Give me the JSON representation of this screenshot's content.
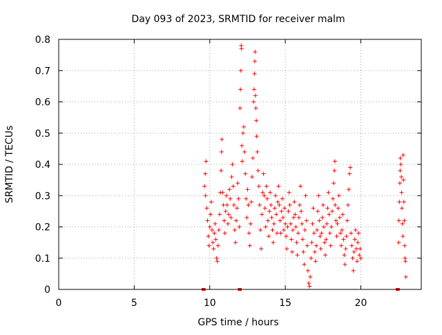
{
  "chart_data": {
    "type": "scatter",
    "title": "Day 093 of 2023, SRMTID for receiver malm",
    "xlabel": "GPS time / hours",
    "ylabel": "SRMTID / TECUs",
    "xlim": [
      0,
      24
    ],
    "ylim": [
      0,
      0.8
    ],
    "xticks": [
      "0",
      "5",
      "10",
      "15",
      "20"
    ],
    "xtick_values": [
      0,
      5,
      10,
      15,
      20
    ],
    "yticks": [
      "0",
      "0.1",
      "0.2",
      "0.3",
      "0.4",
      "0.5",
      "0.6",
      "0.7",
      "0.8"
    ],
    "ytick_values": [
      0,
      0.1,
      0.2,
      0.3,
      0.4,
      0.5,
      0.6,
      0.7,
      0.8
    ],
    "grid": true,
    "marker": "+",
    "series_color": "#ff0000",
    "series": [
      {
        "name": "SRMTID",
        "points": [
          [
            9.65,
            0.33
          ],
          [
            9.7,
            0.37
          ],
          [
            9.75,
            0.41
          ],
          [
            9.72,
            0.3
          ],
          [
            9.8,
            0.26
          ],
          [
            9.85,
            0.22
          ],
          [
            9.9,
            0.17
          ],
          [
            9.95,
            0.14
          ],
          [
            10.0,
            0.2
          ],
          [
            10.05,
            0.24
          ],
          [
            10.1,
            0.28
          ],
          [
            10.15,
            0.19
          ],
          [
            10.2,
            0.15
          ],
          [
            10.25,
            0.13
          ],
          [
            10.3,
            0.18
          ],
          [
            10.35,
            0.21
          ],
          [
            10.4,
            0.16
          ],
          [
            10.45,
            0.1
          ],
          [
            10.5,
            0.09
          ],
          [
            10.55,
            0.14
          ],
          [
            10.6,
            0.19
          ],
          [
            10.65,
            0.24
          ],
          [
            10.7,
            0.31
          ],
          [
            10.75,
            0.38
          ],
          [
            10.78,
            0.44
          ],
          [
            10.8,
            0.48
          ],
          [
            10.85,
            0.31
          ],
          [
            10.9,
            0.27
          ],
          [
            10.95,
            0.22
          ],
          [
            11.0,
            0.18
          ],
          [
            11.05,
            0.25
          ],
          [
            11.1,
            0.3
          ],
          [
            11.15,
            0.27
          ],
          [
            11.2,
            0.21
          ],
          [
            11.25,
            0.24
          ],
          [
            11.3,
            0.32
          ],
          [
            11.35,
            0.29
          ],
          [
            11.4,
            0.23
          ],
          [
            11.45,
            0.36
          ],
          [
            11.5,
            0.4
          ],
          [
            11.55,
            0.33
          ],
          [
            11.6,
            0.27
          ],
          [
            11.65,
            0.19
          ],
          [
            11.7,
            0.15
          ],
          [
            11.75,
            0.22
          ],
          [
            11.8,
            0.26
          ],
          [
            11.85,
            0.34
          ],
          [
            11.9,
            0.29
          ],
          [
            11.95,
            0.2
          ],
          [
            12.0,
            0.58
          ],
          [
            12.03,
            0.64
          ],
          [
            12.06,
            0.7
          ],
          [
            12.08,
            0.78
          ],
          [
            12.1,
            0.77
          ],
          [
            12.12,
            0.46
          ],
          [
            12.15,
            0.41
          ],
          [
            12.2,
            0.5
          ],
          [
            12.25,
            0.52
          ],
          [
            12.3,
            0.44
          ],
          [
            12.35,
            0.37
          ],
          [
            12.4,
            0.29
          ],
          [
            12.45,
            0.23
          ],
          [
            12.5,
            0.32
          ],
          [
            12.55,
            0.27
          ],
          [
            12.6,
            0.18
          ],
          [
            12.65,
            0.14
          ],
          [
            12.7,
            0.21
          ],
          [
            12.75,
            0.28
          ],
          [
            12.8,
            0.36
          ],
          [
            12.85,
            0.42
          ],
          [
            12.9,
            0.6
          ],
          [
            12.93,
            0.64
          ],
          [
            12.96,
            0.69
          ],
          [
            12.98,
            0.73
          ],
          [
            13.0,
            0.76
          ],
          [
            13.02,
            0.62
          ],
          [
            13.05,
            0.58
          ],
          [
            13.08,
            0.54
          ],
          [
            13.1,
            0.49
          ],
          [
            13.15,
            0.44
          ],
          [
            13.2,
            0.38
          ],
          [
            13.25,
            0.33
          ],
          [
            13.3,
            0.27
          ],
          [
            13.35,
            0.19
          ],
          [
            13.4,
            0.13
          ],
          [
            13.45,
            0.24
          ],
          [
            13.5,
            0.31
          ],
          [
            13.55,
            0.37
          ],
          [
            13.6,
            0.3
          ],
          [
            13.65,
            0.26
          ],
          [
            13.7,
            0.2
          ],
          [
            13.75,
            0.33
          ],
          [
            13.8,
            0.29
          ],
          [
            13.85,
            0.22
          ],
          [
            13.9,
            0.17
          ],
          [
            13.95,
            0.25
          ],
          [
            14.0,
            0.31
          ],
          [
            14.05,
            0.27
          ],
          [
            14.1,
            0.23
          ],
          [
            14.15,
            0.19
          ],
          [
            14.2,
            0.15
          ],
          [
            14.25,
            0.21
          ],
          [
            14.3,
            0.26
          ],
          [
            14.35,
            0.3
          ],
          [
            14.4,
            0.24
          ],
          [
            14.45,
            0.18
          ],
          [
            14.5,
            0.28
          ],
          [
            14.55,
            0.33
          ],
          [
            14.6,
            0.27
          ],
          [
            14.65,
            0.22
          ],
          [
            14.7,
            0.18
          ],
          [
            14.75,
            0.25
          ],
          [
            14.8,
            0.29
          ],
          [
            14.85,
            0.23
          ],
          [
            14.9,
            0.19
          ],
          [
            14.95,
            0.26
          ],
          [
            15.0,
            0.21
          ],
          [
            15.05,
            0.17
          ],
          [
            15.1,
            0.13
          ],
          [
            15.15,
            0.2
          ],
          [
            15.2,
            0.25
          ],
          [
            15.25,
            0.31
          ],
          [
            15.3,
            0.27
          ],
          [
            15.35,
            0.21
          ],
          [
            15.4,
            0.16
          ],
          [
            15.45,
            0.12
          ],
          [
            15.5,
            0.19
          ],
          [
            15.55,
            0.23
          ],
          [
            15.6,
            0.28
          ],
          [
            15.65,
            0.24
          ],
          [
            15.7,
            0.2
          ],
          [
            15.75,
            0.15
          ],
          [
            15.8,
            0.11
          ],
          [
            15.85,
            0.18
          ],
          [
            15.9,
            0.23
          ],
          [
            15.95,
            0.27
          ],
          [
            16.0,
            0.33
          ],
          [
            16.05,
            0.25
          ],
          [
            16.1,
            0.21
          ],
          [
            16.15,
            0.16
          ],
          [
            16.2,
            0.12
          ],
          [
            16.25,
            0.08
          ],
          [
            16.3,
            0.19
          ],
          [
            16.35,
            0.3
          ],
          [
            16.4,
            0.22
          ],
          [
            16.45,
            0.14
          ],
          [
            16.5,
            0.06
          ],
          [
            16.55,
            0.02
          ],
          [
            16.6,
            0.01
          ],
          [
            16.65,
            0.04
          ],
          [
            16.7,
            0.1
          ],
          [
            16.75,
            0.15
          ],
          [
            16.8,
            0.21
          ],
          [
            16.85,
            0.26
          ],
          [
            16.9,
            0.18
          ],
          [
            16.95,
            0.12
          ],
          [
            17.0,
            0.09
          ],
          [
            17.05,
            0.14
          ],
          [
            17.1,
            0.19
          ],
          [
            17.15,
            0.25
          ],
          [
            17.2,
            0.3
          ],
          [
            17.25,
            0.22
          ],
          [
            17.3,
            0.17
          ],
          [
            17.35,
            0.13
          ],
          [
            17.4,
            0.18
          ],
          [
            17.45,
            0.23
          ],
          [
            17.5,
            0.27
          ],
          [
            17.55,
            0.2
          ],
          [
            17.6,
            0.15
          ],
          [
            17.65,
            0.11
          ],
          [
            17.7,
            0.16
          ],
          [
            17.75,
            0.21
          ],
          [
            17.8,
            0.26
          ],
          [
            17.85,
            0.31
          ],
          [
            17.9,
            0.24
          ],
          [
            17.95,
            0.18
          ],
          [
            18.0,
            0.14
          ],
          [
            18.05,
            0.2
          ],
          [
            18.1,
            0.25
          ],
          [
            18.15,
            0.29
          ],
          [
            18.2,
            0.34
          ],
          [
            18.25,
            0.38
          ],
          [
            18.28,
            0.41
          ],
          [
            18.3,
            0.27
          ],
          [
            18.35,
            0.22
          ],
          [
            18.4,
            0.17
          ],
          [
            18.45,
            0.21
          ],
          [
            18.5,
            0.26
          ],
          [
            18.55,
            0.3
          ],
          [
            18.6,
            0.23
          ],
          [
            18.65,
            0.18
          ],
          [
            18.7,
            0.14
          ],
          [
            18.75,
            0.19
          ],
          [
            18.8,
            0.24
          ],
          [
            18.85,
            0.16
          ],
          [
            18.9,
            0.11
          ],
          [
            18.95,
            0.08
          ],
          [
            19.0,
            0.13
          ],
          [
            19.05,
            0.17
          ],
          [
            19.1,
            0.22
          ],
          [
            19.15,
            0.27
          ],
          [
            19.2,
            0.32
          ],
          [
            19.25,
            0.37
          ],
          [
            19.3,
            0.39
          ],
          [
            19.35,
            0.18
          ],
          [
            19.4,
            0.14
          ],
          [
            19.45,
            0.1
          ],
          [
            19.5,
            0.06
          ],
          [
            19.55,
            0.12
          ],
          [
            19.6,
            0.16
          ],
          [
            19.65,
            0.19
          ],
          [
            19.7,
            0.13
          ],
          [
            19.75,
            0.09
          ],
          [
            19.8,
            0.15
          ],
          [
            19.85,
            0.18
          ],
          [
            19.9,
            0.11
          ],
          [
            19.95,
            0.13
          ],
          [
            20.0,
            0.1
          ],
          [
            22.5,
            0.15
          ],
          [
            22.52,
            0.22
          ],
          [
            22.55,
            0.28
          ],
          [
            22.58,
            0.34
          ],
          [
            22.6,
            0.38
          ],
          [
            22.62,
            0.42
          ],
          [
            22.65,
            0.4
          ],
          [
            22.68,
            0.36
          ],
          [
            22.7,
            0.31
          ],
          [
            22.72,
            0.26
          ],
          [
            22.75,
            0.21
          ],
          [
            22.78,
            0.17
          ],
          [
            22.8,
            0.43
          ],
          [
            22.82,
            0.35
          ],
          [
            22.85,
            0.28
          ],
          [
            22.88,
            0.22
          ],
          [
            22.9,
            0.14
          ],
          [
            22.92,
            0.1
          ],
          [
            22.95,
            0.09
          ],
          [
            22.98,
            0.04
          ]
        ]
      }
    ],
    "baseline_markers_x": [
      9.55,
      9.62,
      11.95,
      12.02,
      22.4,
      22.48
    ]
  }
}
